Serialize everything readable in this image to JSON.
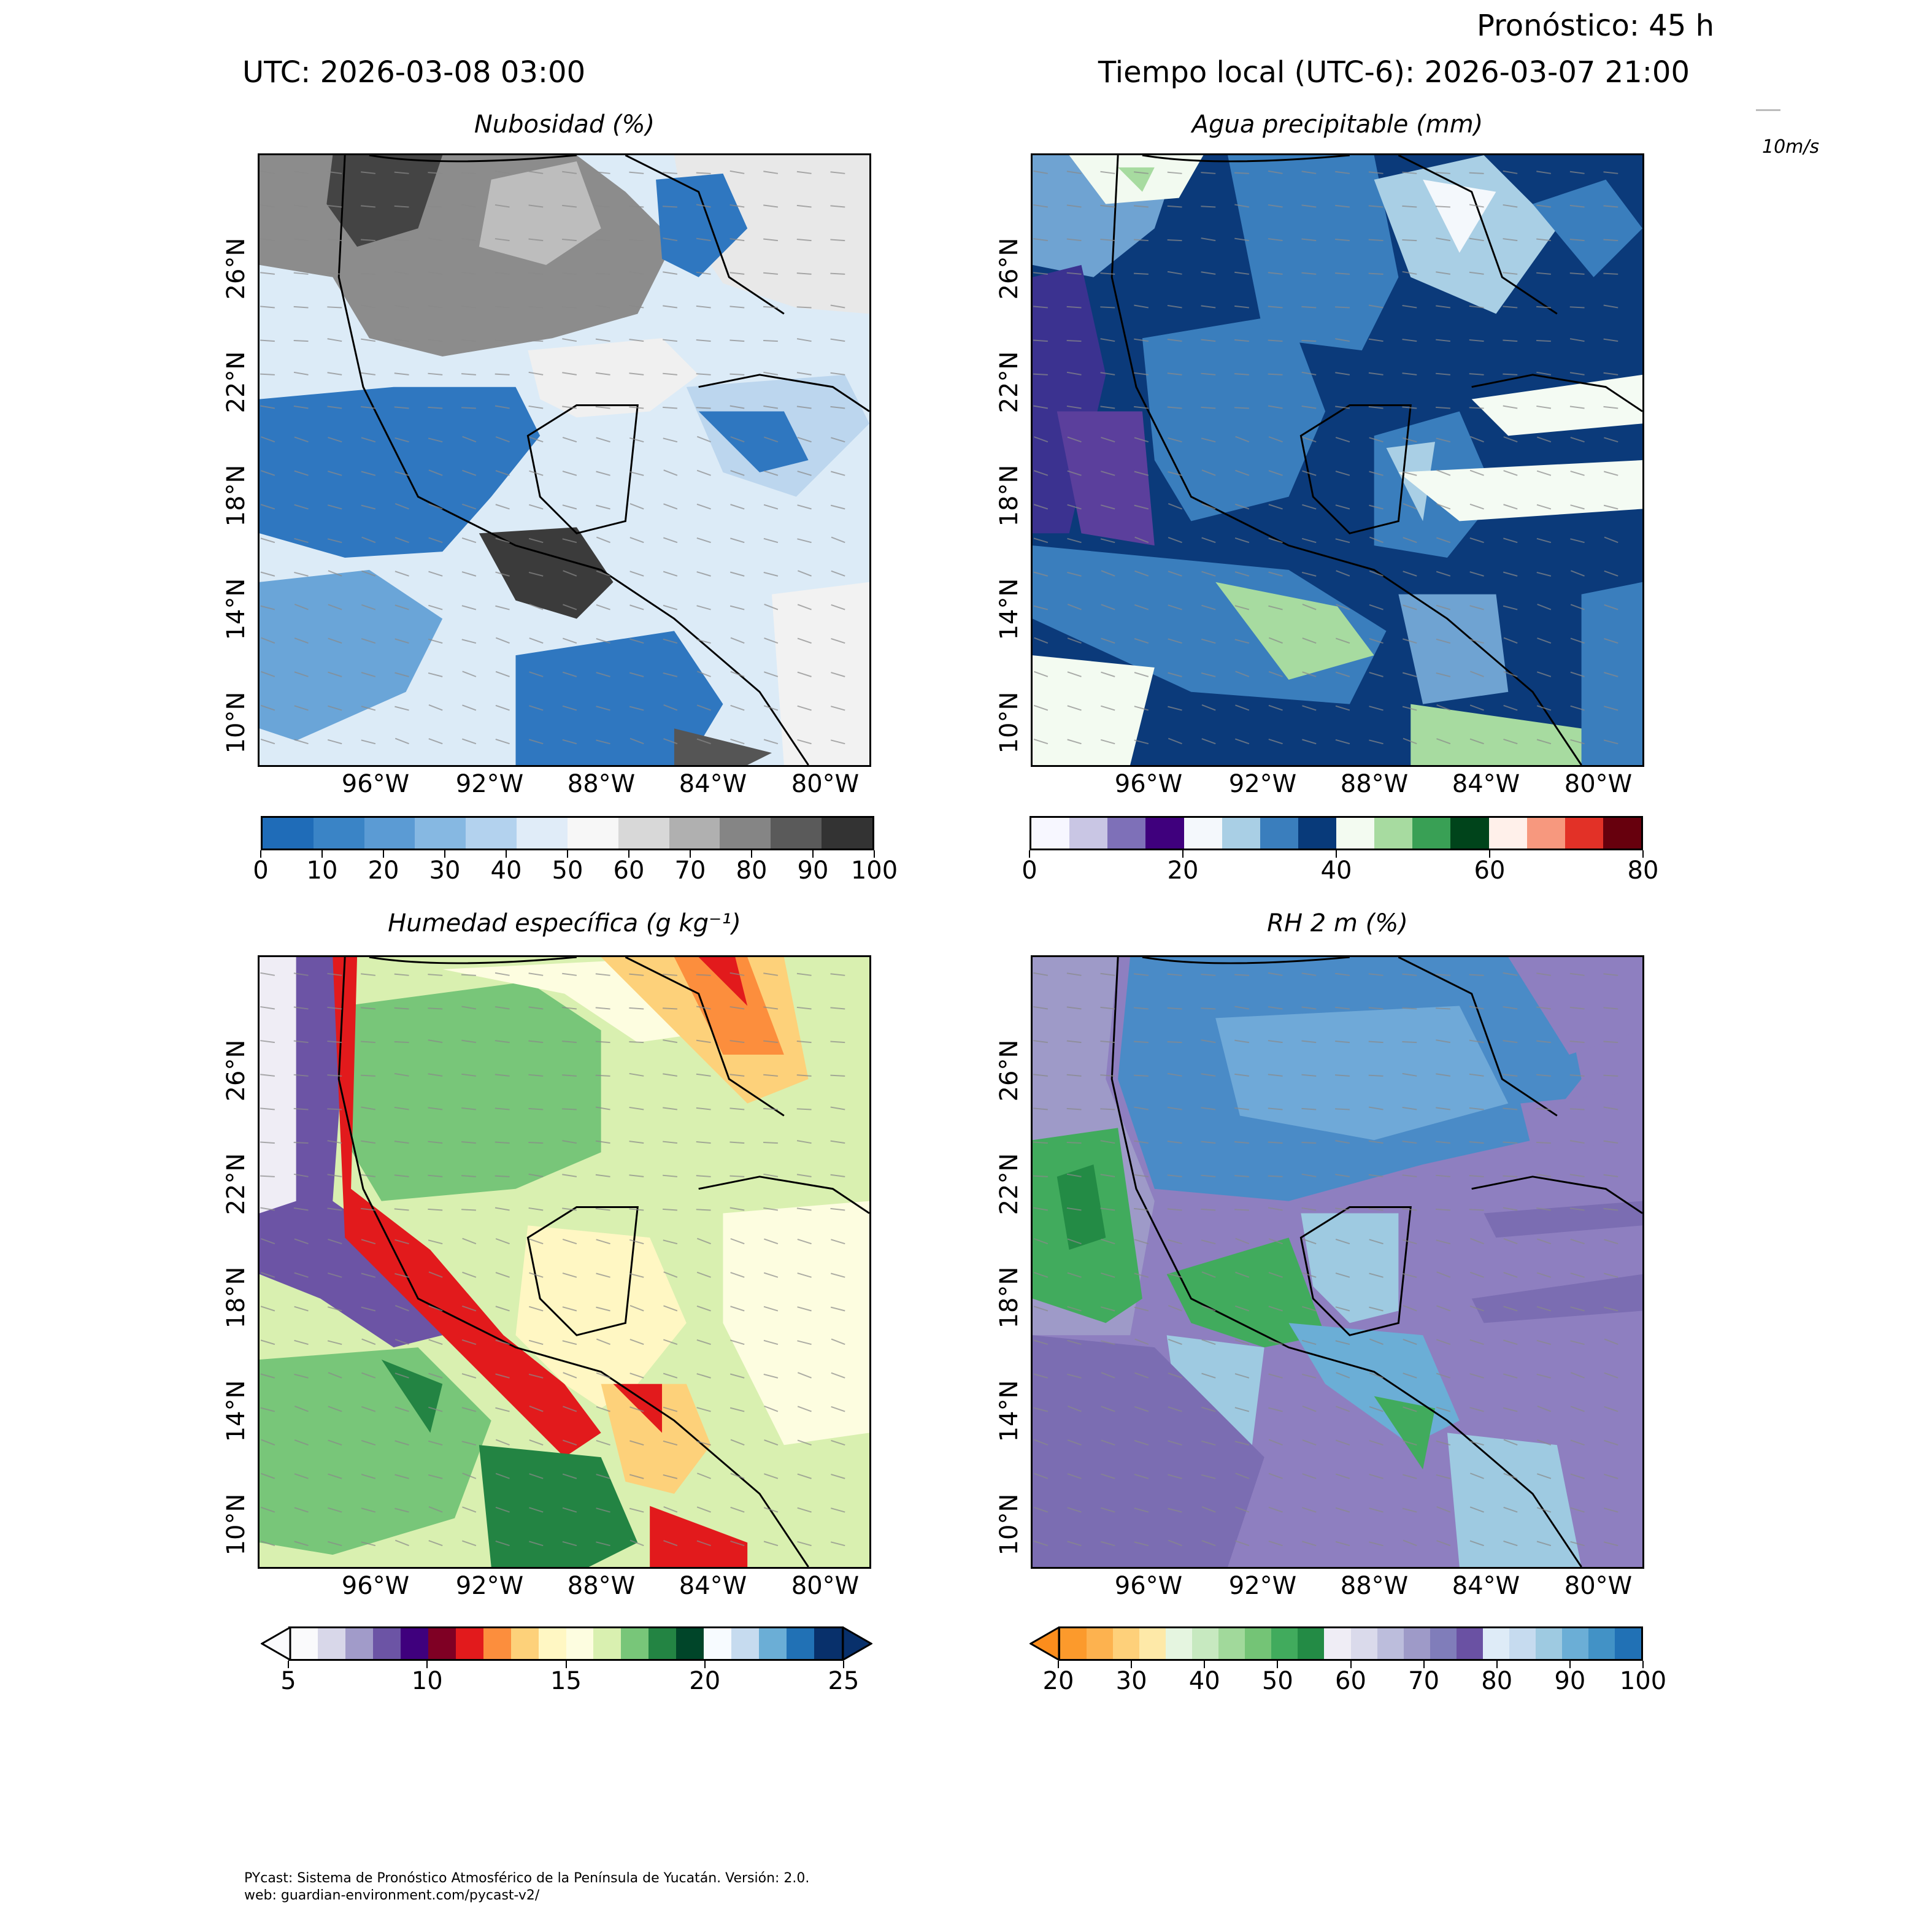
{
  "header": {
    "forecast": "Pronóstico: 45 h",
    "utc": "UTC:  2026-03-08 03:00",
    "local": "Tiempo local (UTC-6): 2026-03-07 21:00"
  },
  "wind_legend": {
    "label": "10m/s"
  },
  "axes": {
    "lat_labels": [
      "26°N",
      "22°N",
      "18°N",
      "14°N",
      "10°N"
    ],
    "lon_labels": [
      "96°W",
      "92°W",
      "88°W",
      "84°W",
      "80°W"
    ]
  },
  "panels": [
    {
      "title": "Nubosidad (%)",
      "colorbar": {
        "ticks": [
          "0",
          "10",
          "20",
          "30",
          "40",
          "50",
          "60",
          "70",
          "80",
          "90",
          "100"
        ],
        "colors": [
          "#1f6cb8",
          "#3a84c6",
          "#5b9bd4",
          "#86b8e2",
          "#b3d2ee",
          "#e0ecf8",
          "#f7f7f7",
          "#d8d8d8",
          "#b0b0b0",
          "#858585",
          "#5a5a5a",
          "#333333"
        ]
      }
    },
    {
      "title": "Agua precipitable (mm)",
      "colorbar": {
        "ticks": [
          "0",
          "20",
          "40",
          "60",
          "80"
        ],
        "colors": [
          "#f7f7ff",
          "#c9c6e4",
          "#7e70b8",
          "#3f007d",
          "#f4f8fc",
          "#a9cfe5",
          "#3a7ebd",
          "#083a7a",
          "#f3fbf1",
          "#a7dba0",
          "#39a055",
          "#00441b",
          "#fff0ea",
          "#f7987e",
          "#e23127",
          "#67000d"
        ]
      }
    },
    {
      "title": "Humedad específica (g kg⁻¹)",
      "colorbar": {
        "ticks": [
          "5",
          "10",
          "15",
          "20",
          "25"
        ],
        "colors": [
          "#fafafc",
          "#d8d7e9",
          "#a19bc9",
          "#6c54a5",
          "#3f007d",
          "#7f0024",
          "#e21a1c",
          "#fc8e3d",
          "#fdd17a",
          "#fff7c3",
          "#fdfde0",
          "#d9f0b0",
          "#78c679",
          "#238443",
          "#004529",
          "#f7fbff",
          "#c6dbef",
          "#6baed6",
          "#2171b5",
          "#08306b"
        ]
      }
    },
    {
      "title": "RH 2 m (%)",
      "colorbar": {
        "ticks": [
          "20",
          "30",
          "40",
          "50",
          "60",
          "70",
          "80",
          "90",
          "100"
        ],
        "colors": [
          "#fc9a2c",
          "#fdb24f",
          "#fed07a",
          "#fee9a8",
          "#e5f5e0",
          "#c7e9c0",
          "#a1d99b",
          "#74c476",
          "#41ab5d",
          "#238b45",
          "#efedf5",
          "#dadaeb",
          "#bcbddc",
          "#9e9ac8",
          "#807dba",
          "#6a51a3",
          "#deebf7",
          "#c6dbef",
          "#9ecae1",
          "#6baed6",
          "#4292c6",
          "#2171b5"
        ]
      }
    }
  ],
  "footer": {
    "line1": "PYcast: Sistema de Pronóstico Atmosférico de la Península de Yucatán. Versión: 2.0.",
    "line2": "web: guardian-environment.com/pycast-v2/"
  }
}
